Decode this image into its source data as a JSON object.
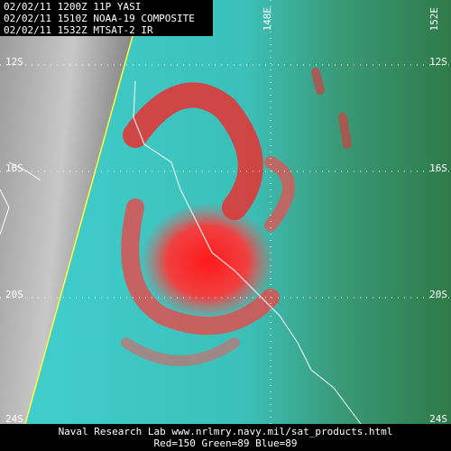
{
  "header": {
    "lines": [
      "02/02/11 1200Z 11P YASI",
      "02/02/11 1510Z NOAA-19 COMPOSITE",
      "02/02/11 1532Z MTSAT-2 IR"
    ]
  },
  "lat_labels": [
    "12S",
    "16S",
    "20S",
    "24S"
  ],
  "lon_labels": [
    "148E",
    "152E"
  ],
  "footer": {
    "lines": [
      "Naval Research Lab  www.nrlmry.navy.mil/sat_products.html",
      "Red=150  Green=89  Blue=89"
    ]
  }
}
